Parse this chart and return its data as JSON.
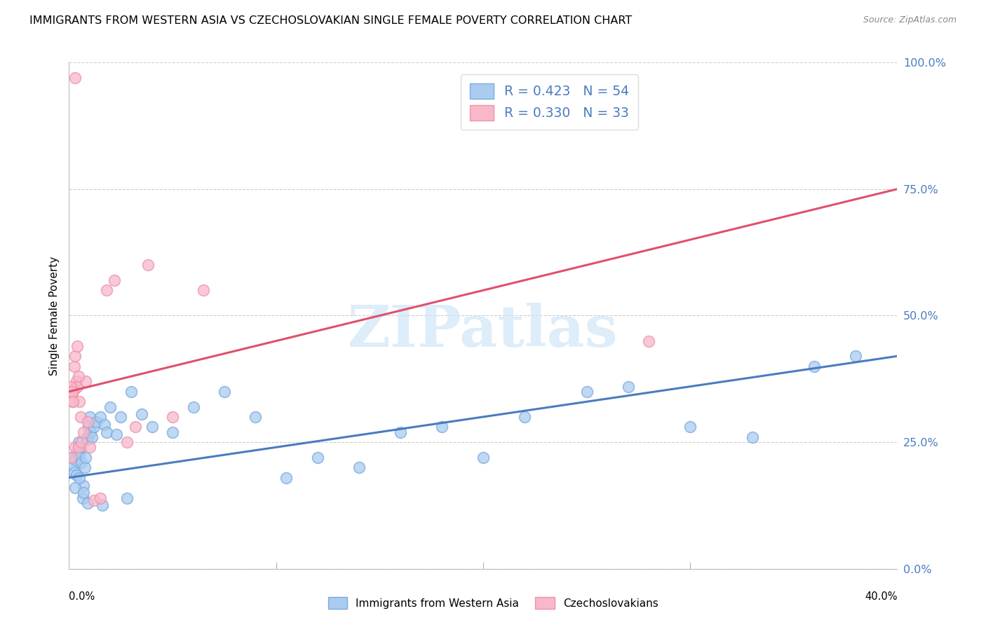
{
  "title": "IMMIGRANTS FROM WESTERN ASIA VS CZECHOSLOVAKIAN SINGLE FEMALE POVERTY CORRELATION CHART",
  "source": "Source: ZipAtlas.com",
  "ylabel": "Single Female Poverty",
  "ytick_vals": [
    0.0,
    25.0,
    50.0,
    75.0,
    100.0
  ],
  "xlim": [
    0.0,
    40.0
  ],
  "ylim": [
    0.0,
    100.0
  ],
  "legend_blue_label": "R = 0.423   N = 54",
  "legend_pink_label": "R = 0.330   N = 33",
  "legend_label_blue": "Immigrants from Western Asia",
  "legend_label_pink": "Czechoslovakians",
  "blue_fill_color": "#aaccf0",
  "blue_edge_color": "#7baade",
  "pink_fill_color": "#f8b8ca",
  "pink_edge_color": "#f090aa",
  "blue_line_color": "#4a7cc0",
  "pink_line_color": "#e0506a",
  "label_color": "#4a7cc0",
  "watermark": "ZIPatlas",
  "blue_scatter_x": [
    0.15,
    0.2,
    0.25,
    0.3,
    0.35,
    0.4,
    0.45,
    0.5,
    0.55,
    0.6,
    0.65,
    0.7,
    0.75,
    0.8,
    0.85,
    0.9,
    0.95,
    1.0,
    1.05,
    1.1,
    1.2,
    1.3,
    1.5,
    1.7,
    1.8,
    2.0,
    2.3,
    2.5,
    3.0,
    3.5,
    4.0,
    5.0,
    6.0,
    7.5,
    9.0,
    10.5,
    12.0,
    14.0,
    16.0,
    18.0,
    20.0,
    22.0,
    25.0,
    27.0,
    30.0,
    33.0,
    36.0,
    0.3,
    0.5,
    0.7,
    0.9,
    1.6,
    2.8,
    38.0
  ],
  "blue_scatter_y": [
    22.0,
    20.5,
    19.0,
    21.5,
    18.5,
    23.0,
    25.0,
    22.5,
    24.0,
    21.0,
    14.0,
    16.5,
    20.0,
    22.0,
    26.0,
    25.5,
    28.0,
    30.0,
    27.0,
    26.0,
    28.0,
    29.0,
    30.0,
    28.5,
    27.0,
    32.0,
    26.5,
    30.0,
    35.0,
    30.5,
    28.0,
    27.0,
    32.0,
    35.0,
    30.0,
    18.0,
    22.0,
    20.0,
    27.0,
    28.0,
    22.0,
    30.0,
    35.0,
    36.0,
    28.0,
    26.0,
    40.0,
    16.0,
    18.0,
    15.0,
    13.0,
    12.5,
    14.0,
    42.0
  ],
  "pink_scatter_x": [
    0.1,
    0.15,
    0.2,
    0.25,
    0.3,
    0.35,
    0.4,
    0.45,
    0.5,
    0.55,
    0.6,
    0.7,
    0.8,
    0.9,
    1.0,
    1.2,
    1.5,
    1.8,
    2.2,
    2.8,
    3.2,
    3.8,
    5.0,
    6.5,
    0.1,
    0.15,
    0.2,
    0.25,
    0.3,
    0.4,
    0.45,
    28.0,
    0.28
  ],
  "pink_scatter_y": [
    22.0,
    33.0,
    35.0,
    35.5,
    24.0,
    37.0,
    36.0,
    24.0,
    33.0,
    30.0,
    25.0,
    27.0,
    37.0,
    29.0,
    24.0,
    13.5,
    14.0,
    55.0,
    57.0,
    25.0,
    28.0,
    60.0,
    30.0,
    55.0,
    36.0,
    35.0,
    33.0,
    40.0,
    42.0,
    44.0,
    38.0,
    45.0,
    97.0
  ],
  "blue_trend_x": [
    0.0,
    40.0
  ],
  "blue_trend_y": [
    18.0,
    42.0
  ],
  "pink_trend_x": [
    0.0,
    40.0
  ],
  "pink_trend_y": [
    35.0,
    75.0
  ]
}
